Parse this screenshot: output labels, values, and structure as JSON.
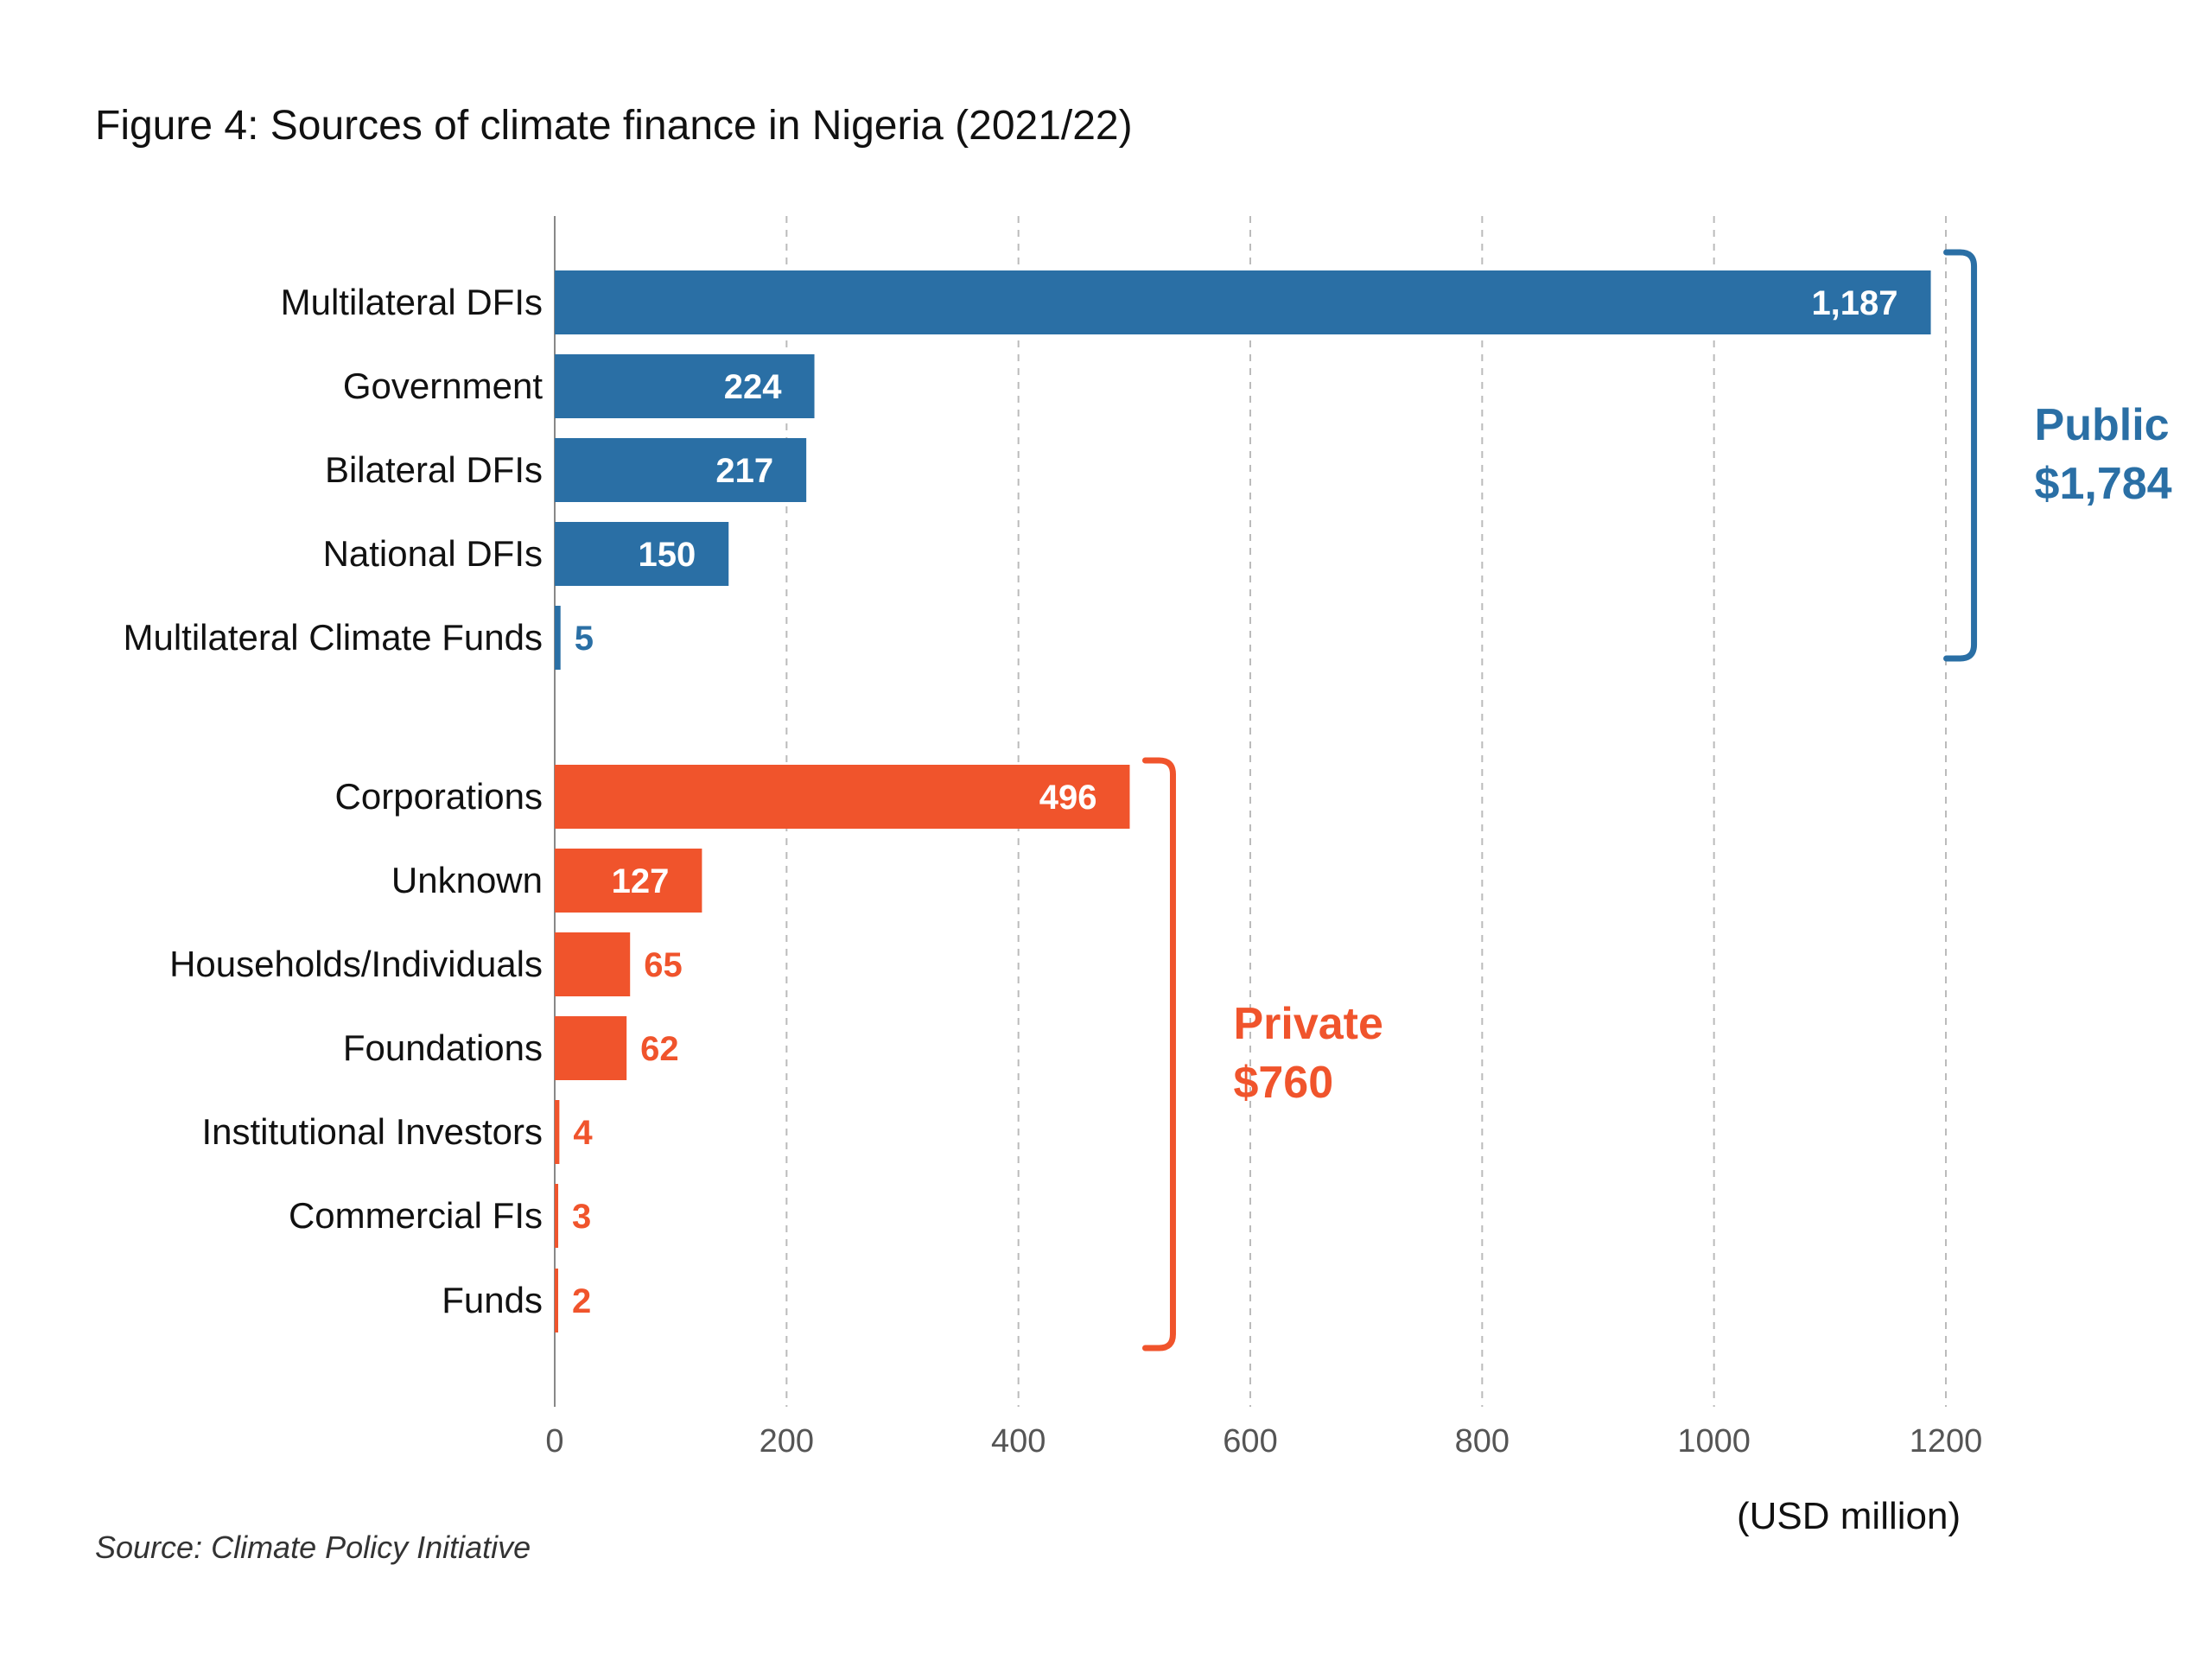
{
  "title": "Figure 4: Sources of climate finance in Nigeria (2021/22)",
  "source": "Source: Climate Policy Initiative",
  "unit_label": "(USD million)",
  "colors": {
    "public": "#2a6fa5",
    "private": "#f0542c",
    "grid": "#bbbbbb",
    "axis": "#888888"
  },
  "chart_data": {
    "type": "bar",
    "orientation": "horizontal",
    "xlim": [
      0,
      1200
    ],
    "x_ticks": [
      "0",
      "200",
      "400",
      "600",
      "800",
      "1000",
      "1200"
    ],
    "x_tick_values": [
      0,
      200,
      400,
      600,
      800,
      1000,
      1200
    ],
    "grid": true,
    "groups": [
      {
        "label": "Public",
        "total_label": "$1,784",
        "color_key": "public",
        "items": [
          {
            "category": "Multilateral DFIs",
            "value": 1187,
            "label": "1,187"
          },
          {
            "category": "Government",
            "value": 224,
            "label": "224"
          },
          {
            "category": "Bilateral DFIs",
            "value": 217,
            "label": "217"
          },
          {
            "category": "National DFIs",
            "value": 150,
            "label": "150"
          },
          {
            "category": "Multilateral Climate Funds",
            "value": 5,
            "label": "5"
          }
        ]
      },
      {
        "label": "Private",
        "total_label": "$760",
        "color_key": "private",
        "items": [
          {
            "category": "Corporations",
            "value": 496,
            "label": "496"
          },
          {
            "category": "Unknown",
            "value": 127,
            "label": "127"
          },
          {
            "category": "Households/Individuals",
            "value": 65,
            "label": "65"
          },
          {
            "category": "Foundations",
            "value": 62,
            "label": "62"
          },
          {
            "category": "Institutional Investors",
            "value": 4,
            "label": "4"
          },
          {
            "category": "Commercial FIs",
            "value": 3,
            "label": "3"
          },
          {
            "category": "Funds",
            "value": 2,
            "label": "2"
          }
        ]
      }
    ]
  }
}
